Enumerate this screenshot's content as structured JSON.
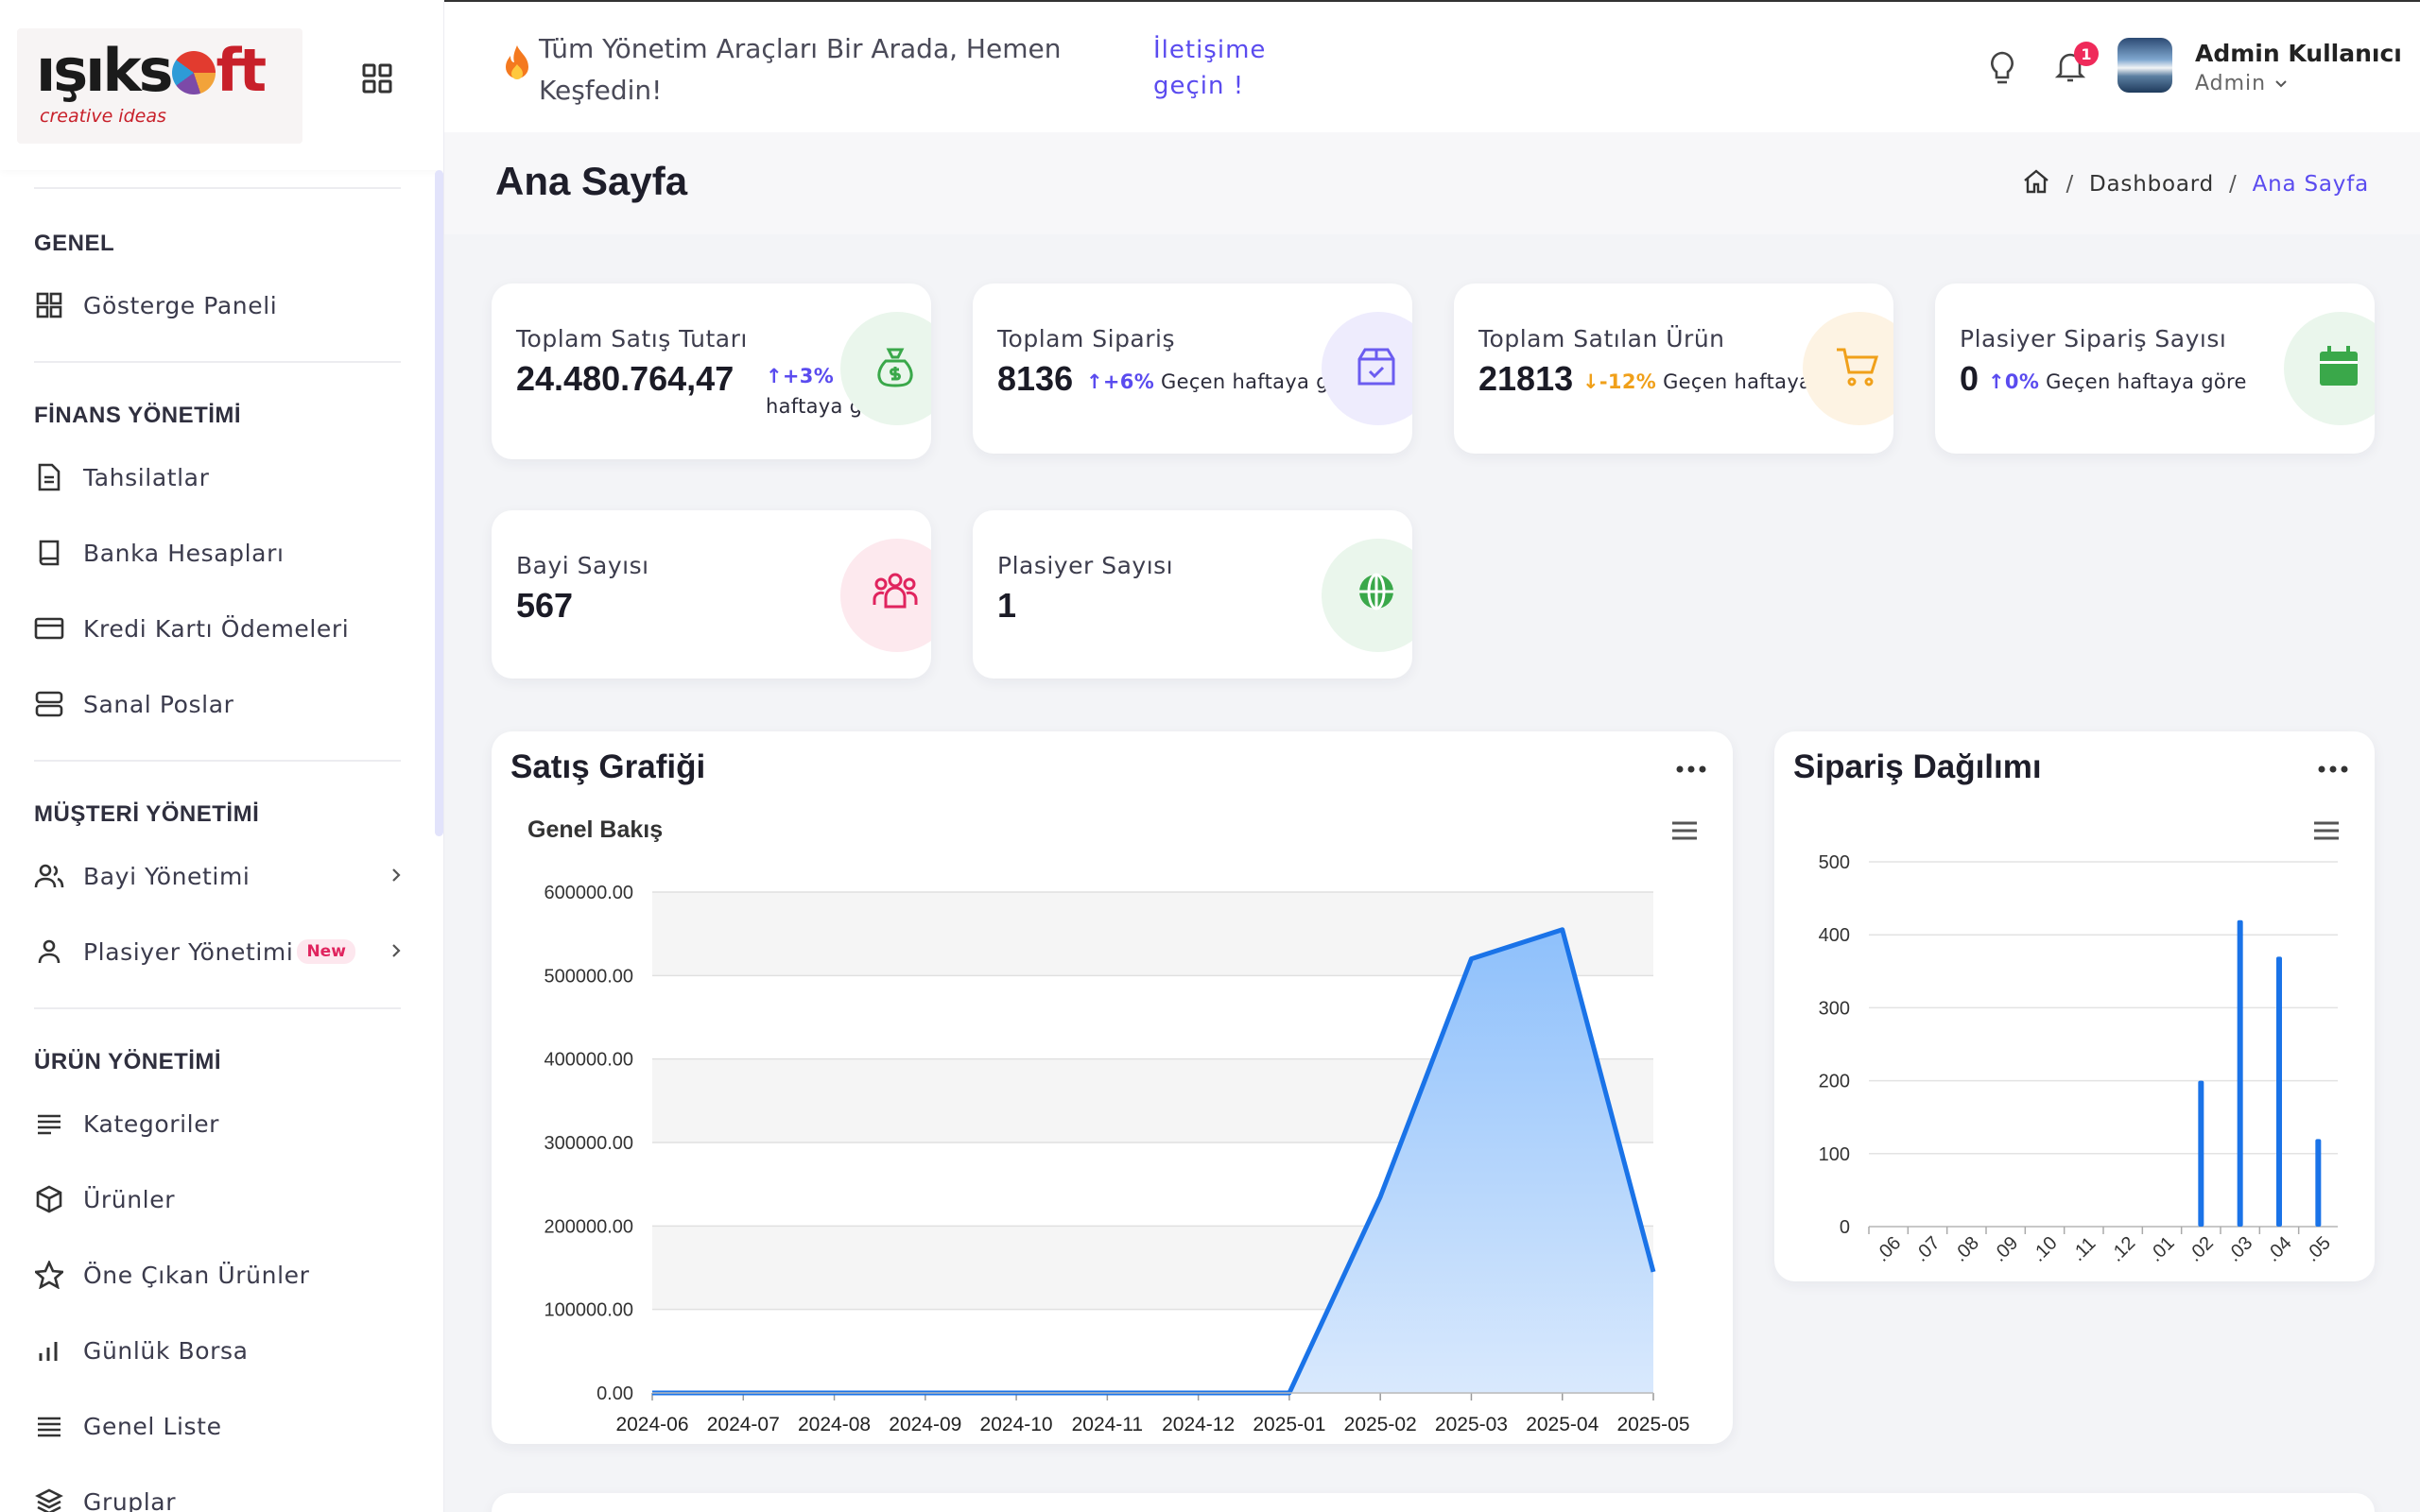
{
  "brand": {
    "logo_text_a": "ışıks",
    "logo_text_b": "ft",
    "logo_tagline": "creative ideas"
  },
  "sidebar": {
    "sections": [
      {
        "title": "GENEL",
        "items": [
          {
            "label": "Gösterge Paneli",
            "icon": "dashboard-grid-icon"
          }
        ]
      },
      {
        "title": "FİNANS YÖNETİMİ",
        "items": [
          {
            "label": "Tahsilatlar",
            "icon": "document-icon"
          },
          {
            "label": "Banka Hesapları",
            "icon": "book-icon"
          },
          {
            "label": "Kredi Kartı Ödemeleri",
            "icon": "credit-card-icon"
          },
          {
            "label": "Sanal Poslar",
            "icon": "server-icon"
          }
        ]
      },
      {
        "title": "MÜŞTERİ YÖNETİMİ",
        "items": [
          {
            "label": "Bayi Yönetimi",
            "icon": "users-icon"
          },
          {
            "label": "Plasiyer Yönetimi",
            "icon": "user-icon",
            "badge": "New"
          }
        ]
      },
      {
        "title": "ÜRÜN YÖNETİMİ",
        "items": [
          {
            "label": "Kategoriler",
            "icon": "list-icon"
          },
          {
            "label": "Ürünler",
            "icon": "box-icon"
          },
          {
            "label": "Öne Çıkan Ürünler",
            "icon": "star-icon"
          },
          {
            "label": "Günlük Borsa",
            "icon": "bar-chart-icon"
          },
          {
            "label": "Genel Liste",
            "icon": "lines-icon"
          },
          {
            "label": "Gruplar",
            "icon": "layers-icon"
          }
        ]
      }
    ]
  },
  "header": {
    "marquee_text": "Tüm Yönetim Araçları Bir Arada, Hemen Keşfedin!",
    "marquee_link": "İletişime geçin !",
    "notification_count": "1",
    "user_name": "Admin Kullanıcı",
    "user_role": "Admin"
  },
  "page": {
    "title": "Ana Sayfa",
    "breadcrumb": [
      "Dashboard",
      "Ana Sayfa"
    ]
  },
  "stats": [
    {
      "label": "Toplam Satış Tutarı",
      "value": "24.480.764,47",
      "trend": "+3%",
      "trend_dir": "up",
      "trend_text": "Geçen haftaya göre",
      "icon": "money-bag-icon",
      "color": "#3aa84a"
    },
    {
      "label": "Toplam Sipariş",
      "value": "8136",
      "trend": "+6%",
      "trend_dir": "up",
      "trend_text": "Geçen haftaya göre",
      "icon": "package-icon",
      "color": "#6b5cf0"
    },
    {
      "label": "Toplam Satılan Ürün",
      "value": "21813",
      "trend": "-12%",
      "trend_dir": "down",
      "trend_text": "Geçen haftaya göre",
      "icon": "cart-icon",
      "color": "#f0a01a"
    },
    {
      "label": "Plasiyer Sipariş Sayısı",
      "value": "0",
      "trend": "0%",
      "trend_dir": "up",
      "trend_text": "Geçen haftaya göre",
      "icon": "calendar-icon",
      "color": "#3aa84a"
    },
    {
      "label": "Bayi Sayısı",
      "value": "567",
      "icon": "group-icon",
      "color": "#e0245e"
    },
    {
      "label": "Plasiyer Sayısı",
      "value": "1",
      "icon": "globe-icon",
      "color": "#3aa84a"
    }
  ],
  "charts": {
    "sales": {
      "title": "Satış Grafiği",
      "subtitle": "Genel Bakış"
    },
    "orders": {
      "title": "Sipariş Dağılımı"
    }
  },
  "chart_data": [
    {
      "type": "area",
      "title": "Genel Bakış",
      "categories": [
        "2024-06",
        "2024-07",
        "2024-08",
        "2024-09",
        "2024-10",
        "2024-11",
        "2024-12",
        "2025-01",
        "2025-02",
        "2025-03",
        "2025-04",
        "2025-05"
      ],
      "values": [
        0,
        0,
        0,
        0,
        0,
        0,
        0,
        0,
        235000,
        520000,
        555000,
        145000
      ],
      "ylim": [
        0,
        600000
      ],
      "yticks": [
        "0.00",
        "100000.00",
        "200000.00",
        "300000.00",
        "400000.00",
        "500000.00",
        "600000.00"
      ],
      "color": "#1a73e8",
      "grid": true
    },
    {
      "type": "bar",
      "categories": [
        ".06",
        ".07",
        ".08",
        ".09",
        ".10",
        ".11",
        ".12",
        ".01",
        ".02",
        ".03",
        ".04",
        ".05"
      ],
      "values": [
        0,
        0,
        0,
        0,
        0,
        0,
        0,
        0,
        200,
        420,
        370,
        120
      ],
      "ylim": [
        0,
        500
      ],
      "yticks": [
        "0",
        "100",
        "200",
        "300",
        "400",
        "500"
      ],
      "color": "#1a73e8",
      "grid": true
    }
  ]
}
